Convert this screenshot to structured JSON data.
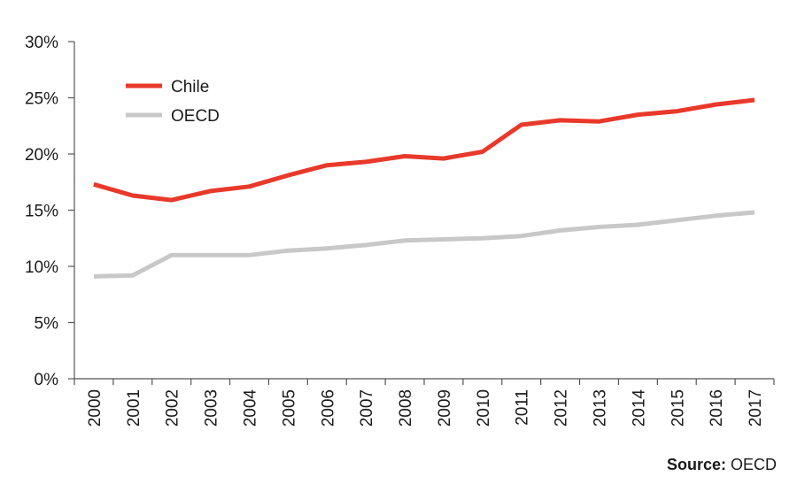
{
  "chart_data": {
    "type": "line",
    "categories": [
      "2000",
      "2001",
      "2002",
      "2003",
      "2004",
      "2005",
      "2006",
      "2007",
      "2008",
      "2009",
      "2010",
      "2011",
      "2012",
      "2013",
      "2014",
      "2015",
      "2016",
      "2017"
    ],
    "series": [
      {
        "name": "Chile",
        "color": "#e8392a",
        "values": [
          17.3,
          16.3,
          15.9,
          16.7,
          17.1,
          18.1,
          19.0,
          19.3,
          19.8,
          19.6,
          20.2,
          22.6,
          23.0,
          22.9,
          23.5,
          23.8,
          24.4,
          24.8
        ]
      },
      {
        "name": "OECD",
        "color": "#c8c8c8",
        "values": [
          9.1,
          9.2,
          11.0,
          11.0,
          11.0,
          11.4,
          11.6,
          11.9,
          12.3,
          12.4,
          12.5,
          12.7,
          13.2,
          13.5,
          13.7,
          14.1,
          14.5,
          14.8
        ]
      }
    ],
    "yticks": [
      "0%",
      "5%",
      "10%",
      "15%",
      "20%",
      "25%",
      "30%"
    ],
    "ylim": [
      0,
      30
    ],
    "grid": false,
    "legend_position": "top-left"
  },
  "source": {
    "prefix": "Source:",
    "text": " OECD"
  }
}
